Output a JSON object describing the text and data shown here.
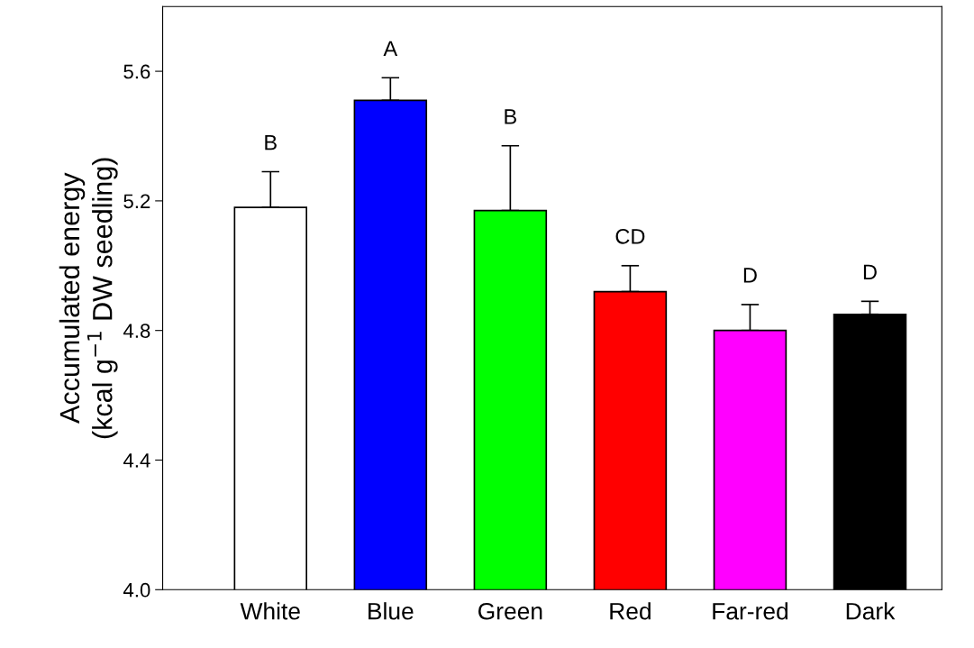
{
  "chart_data": {
    "type": "bar",
    "ylabel": "Accumulated energy\n(kcal g$^{−1}$ DW seedling)",
    "categories": [
      "White",
      "Blue",
      "Green",
      "Red",
      "Far-red",
      "Dark"
    ],
    "values": [
      5.18,
      5.51,
      5.17,
      4.92,
      4.8,
      4.85
    ],
    "errors": [
      0.11,
      0.07,
      0.2,
      0.08,
      0.08,
      0.04
    ],
    "colors": [
      "#ffffff",
      "#0000ff",
      "#00ff00",
      "#ff0000",
      "#ff00ff",
      "#000000"
    ],
    "ylim": [
      4.0,
      5.8
    ],
    "yticks": [
      {
        "value": 4.0,
        "label": "4.0"
      },
      {
        "value": 4.4,
        "label": "4.4"
      },
      {
        "value": 4.8,
        "label": "4.8"
      },
      {
        "value": 5.2,
        "label": "5.2"
      },
      {
        "value": 5.6,
        "label": "5.6"
      }
    ],
    "grid": false,
    "annotations": [
      "B",
      "A",
      "B",
      "CD",
      "D",
      "D"
    ]
  }
}
